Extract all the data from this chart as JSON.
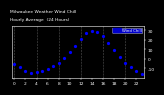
{
  "title": "Milwaukee Weather Wind Chill",
  "subtitle": "Hourly Average  (24 Hours)",
  "hours": [
    0,
    1,
    2,
    3,
    4,
    5,
    6,
    7,
    8,
    9,
    10,
    11,
    12,
    13,
    14,
    15,
    16,
    17,
    18,
    19,
    20,
    21,
    22,
    23
  ],
  "wind_chill": [
    -5,
    -9,
    -13,
    -15,
    -14,
    -13,
    -11,
    -8,
    -4,
    1,
    7,
    14,
    21,
    27,
    29,
    28,
    24,
    17,
    9,
    2,
    -4,
    -9,
    -13,
    -16
  ],
  "ylim": [
    -20,
    35
  ],
  "yticks": [
    30,
    20,
    10,
    0,
    -10
  ],
  "ytick_labels": [
    "3.",
    "2.",
    "1.",
    ".0",
    "-1"
  ],
  "dot_color": "#0000ff",
  "legend_color": "#0000cc",
  "bg_color": "#000000",
  "plot_bg_color": "#000000",
  "grid_color": "#555555",
  "title_color": "#ffffff",
  "tick_label_color": "#ffffff",
  "spine_color": "#ffffff"
}
